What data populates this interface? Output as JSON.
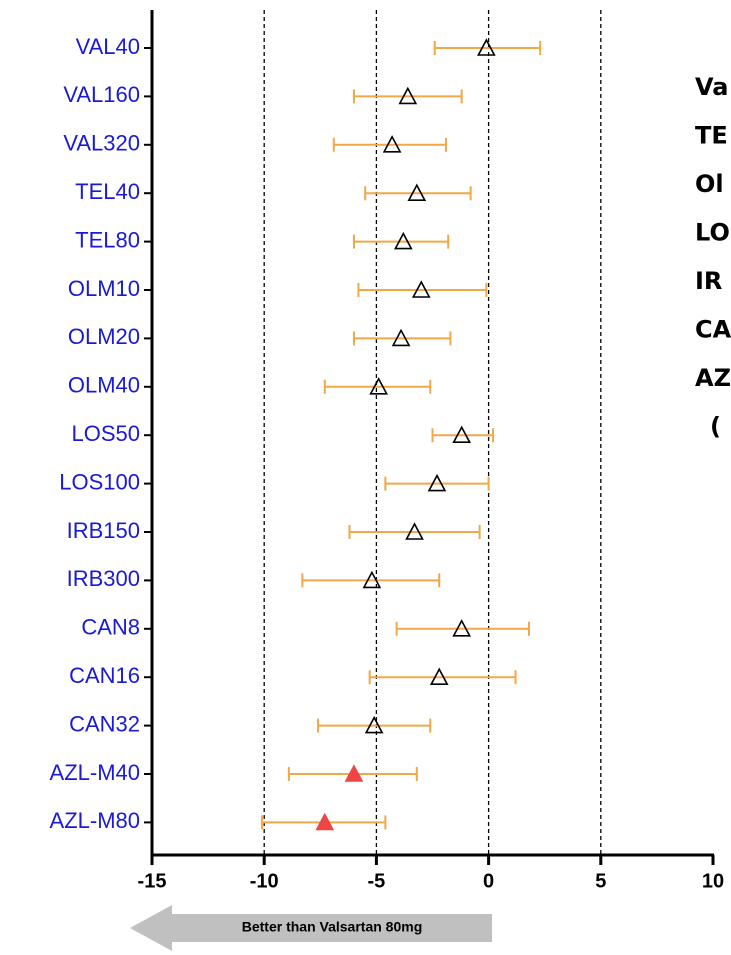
{
  "chart_data": {
    "type": "forest",
    "categories": [
      "VAL40",
      "VAL160",
      "VAL320",
      "TEL40",
      "TEL80",
      "OLM10",
      "OLM20",
      "OLM40",
      "LOS50",
      "LOS100",
      "IRB150",
      "IRB300",
      "CAN8",
      "CAN16",
      "CAN32",
      "AZL-M40",
      "AZL-M80"
    ],
    "values": [
      -0.1,
      -3.6,
      -4.3,
      -3.2,
      -3.8,
      -3.0,
      -3.9,
      -4.9,
      -1.2,
      -2.3,
      -3.3,
      -5.2,
      -1.2,
      -2.2,
      -5.1,
      -6.0,
      -7.3
    ],
    "lower": [
      -2.4,
      -6.0,
      -6.9,
      -5.5,
      -6.0,
      -5.8,
      -6.0,
      -7.3,
      -2.5,
      -4.6,
      -6.2,
      -8.3,
      -4.1,
      -5.3,
      -7.6,
      -8.9,
      -10.1
    ],
    "upper": [
      2.3,
      -1.2,
      -1.9,
      -0.8,
      -1.8,
      -0.1,
      -1.7,
      -2.6,
      0.2,
      0.0,
      -0.4,
      -2.2,
      1.8,
      1.2,
      -2.6,
      -3.2,
      -4.6
    ],
    "point_colors": [
      "none",
      "none",
      "none",
      "none",
      "none",
      "none",
      "none",
      "none",
      "none",
      "none",
      "none",
      "none",
      "none",
      "none",
      "none",
      "#f04545",
      "#f04545"
    ],
    "error_color": "#f0a848",
    "label_color": "#1a1ad6",
    "xlim": [
      -15,
      10
    ],
    "xticks": [
      -15,
      -10,
      -5,
      0,
      5,
      10
    ],
    "reference_lines": [
      -10,
      -5,
      0,
      5
    ],
    "side_text": [
      "Va",
      "TE",
      "Ol",
      "LO",
      "IR",
      "CA",
      "AZ",
      "("
    ],
    "arrow_label": "Better than Valsartan 80mg"
  }
}
